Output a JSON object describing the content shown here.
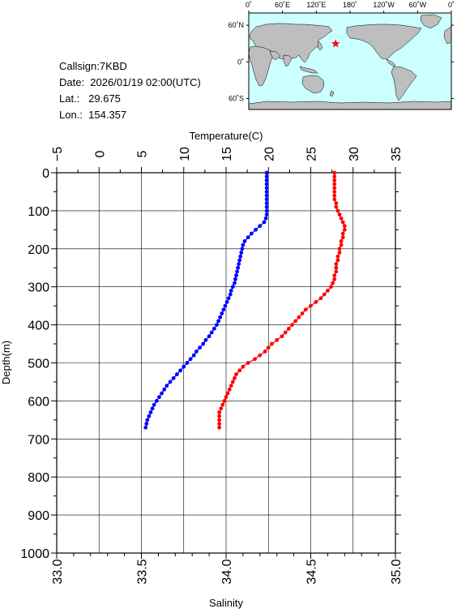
{
  "info": {
    "callsign": "Callsign:7KBD",
    "date": "Date:  2026/01/19 02:00(UTC)",
    "lat": "Lat.:   29.675",
    "lon": "Lon.:  154.357"
  },
  "map": {
    "top_labels": [
      "0˚",
      "60˚E",
      "120˚E",
      "180˚",
      "120˚W",
      "60˚W",
      "0˚"
    ],
    "side_labels": [
      "60˚N",
      "0˚",
      "60˚S"
    ],
    "station": {
      "lon": 154.357,
      "lat": 29.675
    },
    "colors": {
      "ocean": "#ccffff",
      "land": "#bebebe",
      "marker": "#ff0000"
    }
  },
  "chart_data": {
    "type": "scatter",
    "xlabel_top": "Temperature(C)",
    "xlabel_bottom": "Salinity",
    "ylabel": "Depth(m)",
    "temperature_ticks": [
      "−5",
      "0",
      "5",
      "10",
      "15",
      "20",
      "25",
      "30",
      "35"
    ],
    "salinity_ticks": [
      "33.0",
      "33.5",
      "34.0",
      "34.5",
      "35.0"
    ],
    "depth_ticks": [
      "0",
      "100",
      "200",
      "300",
      "400",
      "500",
      "600",
      "700",
      "800",
      "900",
      "1000"
    ],
    "temperature_range": [
      -5,
      35
    ],
    "salinity_range": [
      33.0,
      35.0
    ],
    "depth_range": [
      0,
      1000
    ],
    "grid": true,
    "series": [
      {
        "color": "#0000ff",
        "axis": "temperature",
        "points": [
          [
            19.8,
            0
          ],
          [
            19.8,
            10
          ],
          [
            19.8,
            20
          ],
          [
            19.8,
            30
          ],
          [
            19.8,
            40
          ],
          [
            19.8,
            50
          ],
          [
            19.8,
            60
          ],
          [
            19.8,
            70
          ],
          [
            19.8,
            80
          ],
          [
            19.8,
            90
          ],
          [
            19.8,
            100
          ],
          [
            19.8,
            110
          ],
          [
            19.7,
            120
          ],
          [
            19.5,
            130
          ],
          [
            19.0,
            140
          ],
          [
            18.5,
            150
          ],
          [
            18.0,
            160
          ],
          [
            17.6,
            170
          ],
          [
            17.2,
            180
          ],
          [
            17.0,
            190
          ],
          [
            16.9,
            200
          ],
          [
            16.8,
            210
          ],
          [
            16.7,
            220
          ],
          [
            16.6,
            230
          ],
          [
            16.5,
            240
          ],
          [
            16.4,
            250
          ],
          [
            16.3,
            260
          ],
          [
            16.2,
            270
          ],
          [
            16.1,
            280
          ],
          [
            16.0,
            290
          ],
          [
            15.8,
            300
          ],
          [
            15.6,
            310
          ],
          [
            15.5,
            320
          ],
          [
            15.3,
            330
          ],
          [
            15.1,
            340
          ],
          [
            14.9,
            350
          ],
          [
            14.7,
            360
          ],
          [
            14.5,
            370
          ],
          [
            14.3,
            380
          ],
          [
            14.1,
            390
          ],
          [
            13.9,
            400
          ],
          [
            13.6,
            410
          ],
          [
            13.3,
            420
          ],
          [
            13.0,
            430
          ],
          [
            12.6,
            440
          ],
          [
            12.3,
            450
          ],
          [
            11.9,
            460
          ],
          [
            11.5,
            470
          ],
          [
            11.2,
            480
          ],
          [
            10.8,
            490
          ],
          [
            10.4,
            500
          ],
          [
            10.0,
            510
          ],
          [
            9.6,
            520
          ],
          [
            9.2,
            530
          ],
          [
            8.8,
            540
          ],
          [
            8.4,
            550
          ],
          [
            8.0,
            560
          ],
          [
            7.7,
            570
          ],
          [
            7.4,
            580
          ],
          [
            7.1,
            590
          ],
          [
            6.8,
            600
          ],
          [
            6.5,
            610
          ],
          [
            6.3,
            620
          ],
          [
            6.1,
            630
          ],
          [
            5.9,
            640
          ],
          [
            5.7,
            650
          ],
          [
            5.6,
            660
          ],
          [
            5.5,
            670
          ]
        ]
      },
      {
        "color": "#ff0000",
        "axis": "salinity",
        "points": [
          [
            34.64,
            0
          ],
          [
            34.64,
            10
          ],
          [
            34.64,
            20
          ],
          [
            34.64,
            30
          ],
          [
            34.64,
            40
          ],
          [
            34.64,
            50
          ],
          [
            34.64,
            60
          ],
          [
            34.64,
            70
          ],
          [
            34.65,
            80
          ],
          [
            34.65,
            90
          ],
          [
            34.66,
            100
          ],
          [
            34.67,
            110
          ],
          [
            34.68,
            120
          ],
          [
            34.69,
            130
          ],
          [
            34.7,
            140
          ],
          [
            34.7,
            150
          ],
          [
            34.69,
            160
          ],
          [
            34.69,
            170
          ],
          [
            34.68,
            180
          ],
          [
            34.68,
            190
          ],
          [
            34.67,
            200
          ],
          [
            34.67,
            210
          ],
          [
            34.66,
            220
          ],
          [
            34.66,
            230
          ],
          [
            34.65,
            240
          ],
          [
            34.65,
            250
          ],
          [
            34.65,
            260
          ],
          [
            34.64,
            270
          ],
          [
            34.64,
            280
          ],
          [
            34.63,
            290
          ],
          [
            34.62,
            300
          ],
          [
            34.6,
            310
          ],
          [
            34.58,
            320
          ],
          [
            34.56,
            330
          ],
          [
            34.53,
            340
          ],
          [
            34.5,
            350
          ],
          [
            34.47,
            360
          ],
          [
            34.45,
            370
          ],
          [
            34.43,
            380
          ],
          [
            34.41,
            390
          ],
          [
            34.39,
            400
          ],
          [
            34.37,
            410
          ],
          [
            34.35,
            420
          ],
          [
            34.33,
            430
          ],
          [
            34.3,
            440
          ],
          [
            34.27,
            450
          ],
          [
            34.25,
            460
          ],
          [
            34.23,
            470
          ],
          [
            34.2,
            480
          ],
          [
            34.17,
            490
          ],
          [
            34.13,
            500
          ],
          [
            34.1,
            510
          ],
          [
            34.08,
            520
          ],
          [
            34.06,
            530
          ],
          [
            34.05,
            540
          ],
          [
            34.04,
            550
          ],
          [
            34.03,
            560
          ],
          [
            34.02,
            570
          ],
          [
            34.01,
            580
          ],
          [
            34.0,
            590
          ],
          [
            33.99,
            600
          ],
          [
            33.98,
            610
          ],
          [
            33.97,
            620
          ],
          [
            33.96,
            630
          ],
          [
            33.96,
            640
          ],
          [
            33.96,
            650
          ],
          [
            33.96,
            660
          ],
          [
            33.96,
            670
          ]
        ]
      }
    ]
  }
}
